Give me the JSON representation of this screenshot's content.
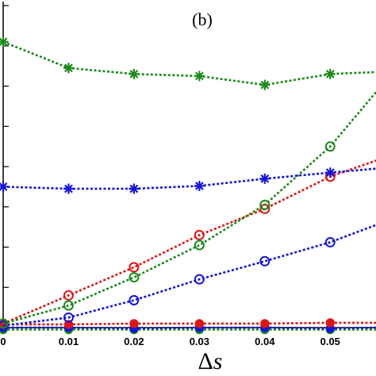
{
  "chart_data": {
    "type": "line",
    "title": "(b)",
    "xlabel_symbol": "Δ",
    "xlabel_var": "s",
    "ylabel": "",
    "xlim": [
      0,
      0.057
    ],
    "ylim": [
      0,
      8.1
    ],
    "x_ticks": [
      0,
      0.01,
      0.02,
      0.03,
      0.04,
      0.05
    ],
    "x_tick_labels": [
      "0",
      "0.01",
      "0.02",
      "0.03",
      "0.04",
      "0.05"
    ],
    "y_ticks": [
      1,
      2,
      3,
      4,
      5,
      6,
      7,
      8
    ],
    "y_tick_labels": [],
    "grid": false,
    "legend": "none",
    "x": [
      0,
      0.01,
      0.02,
      0.03,
      0.04,
      0.05
    ],
    "series": [
      {
        "color": "#1a8a1a",
        "marker": "asterisk",
        "values": [
          7.1,
          6.45,
          6.3,
          6.25,
          6.03,
          6.3
        ],
        "extend_to": 6.35
      },
      {
        "color": "#1515dd",
        "marker": "asterisk",
        "values": [
          3.5,
          3.45,
          3.45,
          3.52,
          3.7,
          3.85
        ],
        "extend_to": 3.95
      },
      {
        "color": "#1a8a1a",
        "marker": "circle-open",
        "values": [
          0.1,
          0.55,
          1.25,
          2.05,
          3.05,
          4.5
        ],
        "extend_to": 5.85
      },
      {
        "color": "#dd1515",
        "marker": "circle-open",
        "values": [
          0.1,
          0.8,
          1.5,
          2.3,
          2.95,
          3.75
        ],
        "extend_to": 4.15
      },
      {
        "color": "#1515dd",
        "marker": "circle-open",
        "values": [
          0.05,
          0.25,
          0.68,
          1.2,
          1.65,
          2.12
        ],
        "extend_to": 2.55
      },
      {
        "color": "#dd1515",
        "marker": "circle-filled",
        "values": [
          0.08,
          0.08,
          0.1,
          0.1,
          0.1,
          0.12
        ],
        "extend_to": 0.12
      },
      {
        "color": "#1a8a1a",
        "marker": "circle-filled",
        "values": [
          -0.05,
          -0.05,
          -0.05,
          -0.05,
          -0.05,
          -0.05
        ],
        "extend_to": -0.05
      },
      {
        "color": "#1515dd",
        "marker": "circle-filled",
        "values": [
          0.0,
          0.0,
          -0.02,
          0.0,
          0.0,
          -0.02
        ],
        "extend_to": 0.0
      }
    ]
  }
}
